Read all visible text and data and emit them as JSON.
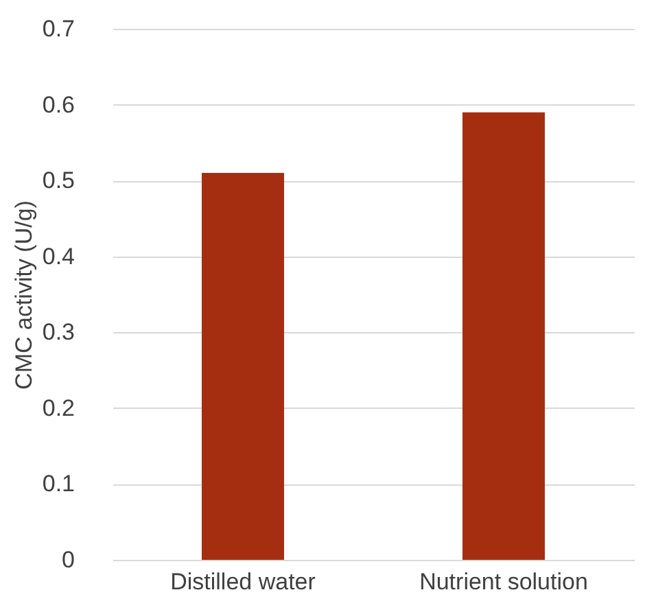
{
  "chart_data": {
    "type": "bar",
    "ylabel": "CMC activity (U/g)",
    "categories": [
      "Distilled water",
      "Nutrient solution"
    ],
    "values": [
      0.51,
      0.59
    ],
    "color": "#a62e10",
    "ylim": [
      0,
      0.7
    ],
    "yticks": [
      0,
      0.1,
      0.2,
      0.3,
      0.4,
      0.5,
      0.6,
      0.7
    ],
    "grid": "y"
  }
}
